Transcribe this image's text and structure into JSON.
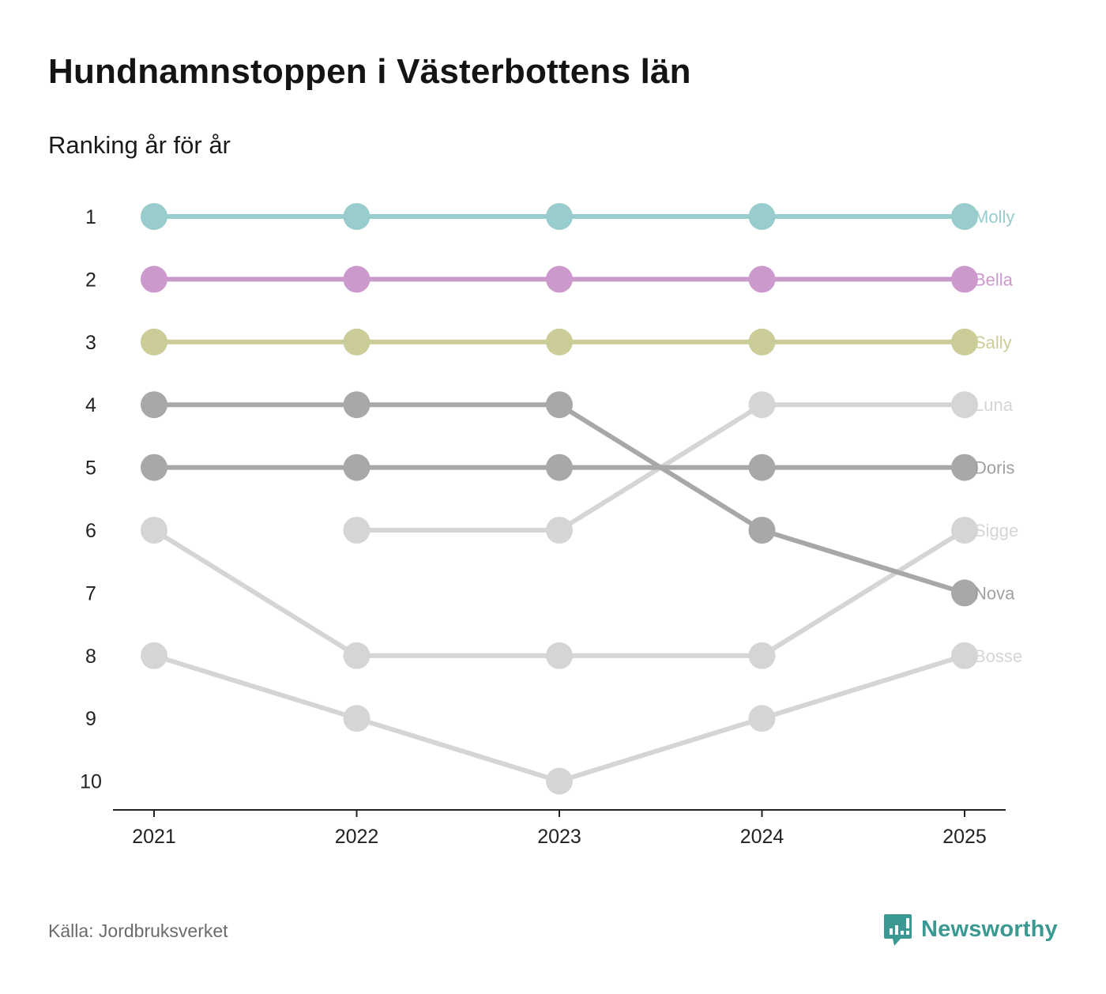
{
  "header": {
    "title": "Hundnamnstoppen i Västerbottens län",
    "subtitle": "Ranking år för år"
  },
  "footer": {
    "source": "Källa: Jordbruksverket",
    "brand": "Newsworthy",
    "brand_icon": "newsworthy-logo-icon",
    "brand_color": "#3a9a93"
  },
  "chart_data": {
    "type": "line",
    "subtype": "bump",
    "title": "Hundnamnstoppen i Västerbottens län",
    "subtitle": "Ranking år för år",
    "xlabel": "",
    "ylabel": "",
    "categories": [
      "2021",
      "2022",
      "2023",
      "2024",
      "2025"
    ],
    "y_ticks": [
      1,
      2,
      3,
      4,
      5,
      6,
      7,
      8,
      9,
      10
    ],
    "ylim": [
      1,
      10
    ],
    "y_inverted": true,
    "grid": false,
    "legend": "direct labels at right end",
    "series": [
      {
        "name": "Molly",
        "color": "#99cccc",
        "label_color": "#99cccc",
        "values": [
          1,
          1,
          1,
          1,
          1
        ]
      },
      {
        "name": "Bella",
        "color": "#cc99cc",
        "label_color": "#cc99cc",
        "values": [
          2,
          2,
          2,
          2,
          2
        ]
      },
      {
        "name": "Sally",
        "color": "#cccc99",
        "label_color": "#cccc99",
        "values": [
          3,
          3,
          3,
          3,
          3
        ]
      },
      {
        "name": "Luna",
        "color": "#d5d5d5",
        "label_color": "#d5d5d5",
        "values": [
          null,
          6,
          6,
          4,
          4
        ]
      },
      {
        "name": "Doris",
        "color": "#a8a8a8",
        "label_color": "#a0a0a0",
        "values": [
          5,
          5,
          5,
          5,
          5
        ]
      },
      {
        "name": "Sigge",
        "color": "#d5d5d5",
        "label_color": "#d5d5d5",
        "values": [
          6,
          8,
          8,
          8,
          6
        ]
      },
      {
        "name": "Nova",
        "color": "#a8a8a8",
        "label_color": "#a0a0a0",
        "values": [
          4,
          4,
          4,
          6,
          7
        ]
      },
      {
        "name": "Bosse",
        "color": "#d5d5d5",
        "label_color": "#d5d5d5",
        "values": [
          8,
          9,
          10,
          9,
          8
        ]
      }
    ]
  }
}
